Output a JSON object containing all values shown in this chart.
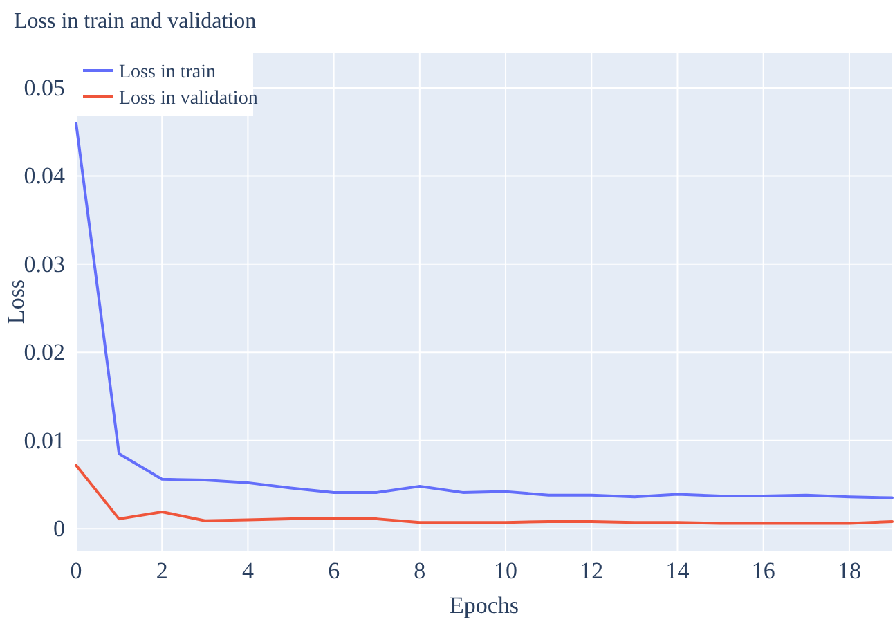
{
  "chart_data": {
    "type": "line",
    "title": "Loss in train and validation",
    "xlabel": "Epochs",
    "ylabel": "Loss",
    "x": [
      0,
      1,
      2,
      3,
      4,
      5,
      6,
      7,
      8,
      9,
      10,
      11,
      12,
      13,
      14,
      15,
      16,
      17,
      18,
      19
    ],
    "series": [
      {
        "name": "Loss in train",
        "color": "#636efa",
        "values": [
          0.046,
          0.0085,
          0.0056,
          0.0055,
          0.0052,
          0.0046,
          0.0041,
          0.0041,
          0.0048,
          0.0041,
          0.0042,
          0.0038,
          0.0038,
          0.0036,
          0.0039,
          0.0037,
          0.0037,
          0.0038,
          0.0036,
          0.0035
        ]
      },
      {
        "name": "Loss in validation",
        "color": "#ef553b",
        "values": [
          0.0072,
          0.0011,
          0.0019,
          0.0009,
          0.001,
          0.0011,
          0.0011,
          0.0011,
          0.0007,
          0.0007,
          0.0007,
          0.0008,
          0.0008,
          0.0007,
          0.0007,
          0.0006,
          0.0006,
          0.0006,
          0.0006,
          0.0008
        ]
      }
    ],
    "xlim": [
      0,
      19
    ],
    "xticks": [
      0,
      2,
      4,
      6,
      8,
      10,
      12,
      14,
      16,
      18
    ],
    "ylim": [
      -0.0025,
      0.054
    ],
    "yticks": [
      0,
      0.01,
      0.02,
      0.03,
      0.04,
      0.05
    ],
    "grid": true,
    "legend": "top left",
    "marker": "none",
    "line_style": "solid"
  }
}
